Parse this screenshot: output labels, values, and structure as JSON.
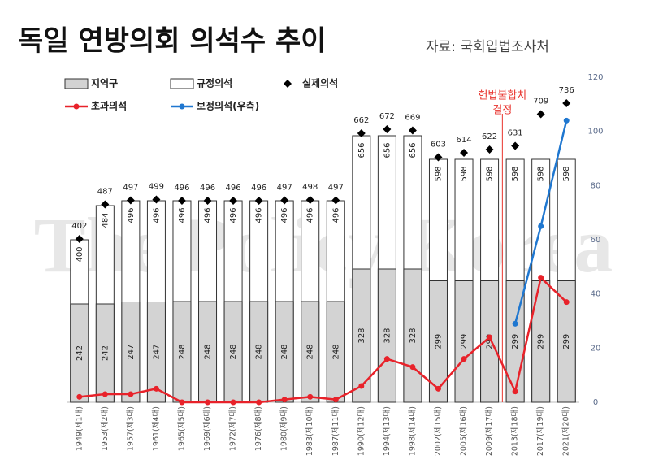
{
  "chart_data": {
    "type": "bar",
    "title": "독일 연방의회 의석수 추이",
    "source": "자료: 국회입법조사처",
    "watermark": "The Policy Korea",
    "annotation": [
      "헌법불합치",
      "결정"
    ],
    "categories": [
      "1949(제1대)",
      "1953(제2대)",
      "1957(제3대)",
      "1961(제4대)",
      "1965(제5대)",
      "1969(제6대)",
      "1972(제7대)",
      "1976(제8대)",
      "1980(제9대)",
      "1983(제10대)",
      "1987(제11대)",
      "1990(제12대)",
      "1994(제13대)",
      "1998(제14대)",
      "2002(제15대)",
      "2005(제16대)",
      "2009(제17대)",
      "2013(제18대)",
      "2017(제19대)",
      "2021(제20대)"
    ],
    "series": [
      {
        "name": "지역구",
        "kind": "bar",
        "color": "#d3d3d3",
        "values": [
          242,
          242,
          247,
          247,
          248,
          248,
          248,
          248,
          248,
          248,
          248,
          328,
          328,
          328,
          299,
          299,
          299,
          299,
          299,
          299
        ]
      },
      {
        "name": "규정의석",
        "kind": "bar",
        "color": "#ffffff",
        "values": [
          400,
          484,
          496,
          496,
          496,
          496,
          496,
          496,
          496,
          496,
          496,
          656,
          656,
          656,
          598,
          598,
          598,
          598,
          598,
          598
        ]
      },
      {
        "name": "실제의석",
        "kind": "marker",
        "color": "#000000",
        "values": [
          402,
          487,
          497,
          499,
          496,
          496,
          496,
          496,
          497,
          498,
          497,
          662,
          672,
          669,
          603,
          614,
          622,
          631,
          709,
          736
        ]
      },
      {
        "name": "초과의석",
        "kind": "line",
        "axis": "y2",
        "color": "#e8222a",
        "values": [
          2,
          3,
          3,
          5,
          0,
          0,
          0,
          0,
          1,
          2,
          1,
          6,
          16,
          13,
          5,
          16,
          24,
          4,
          46,
          37
        ]
      },
      {
        "name": "보정의석(우측)",
        "kind": "line",
        "axis": "y2",
        "color": "#1f77d0",
        "values": [
          null,
          null,
          null,
          null,
          null,
          null,
          null,
          null,
          null,
          null,
          null,
          null,
          null,
          null,
          null,
          null,
          null,
          29,
          65,
          104
        ]
      }
    ],
    "ylim": [
      0,
      800
    ],
    "y2lim": [
      0,
      120
    ],
    "y2ticks": [
      0,
      20,
      40,
      60,
      80,
      100,
      120
    ]
  }
}
